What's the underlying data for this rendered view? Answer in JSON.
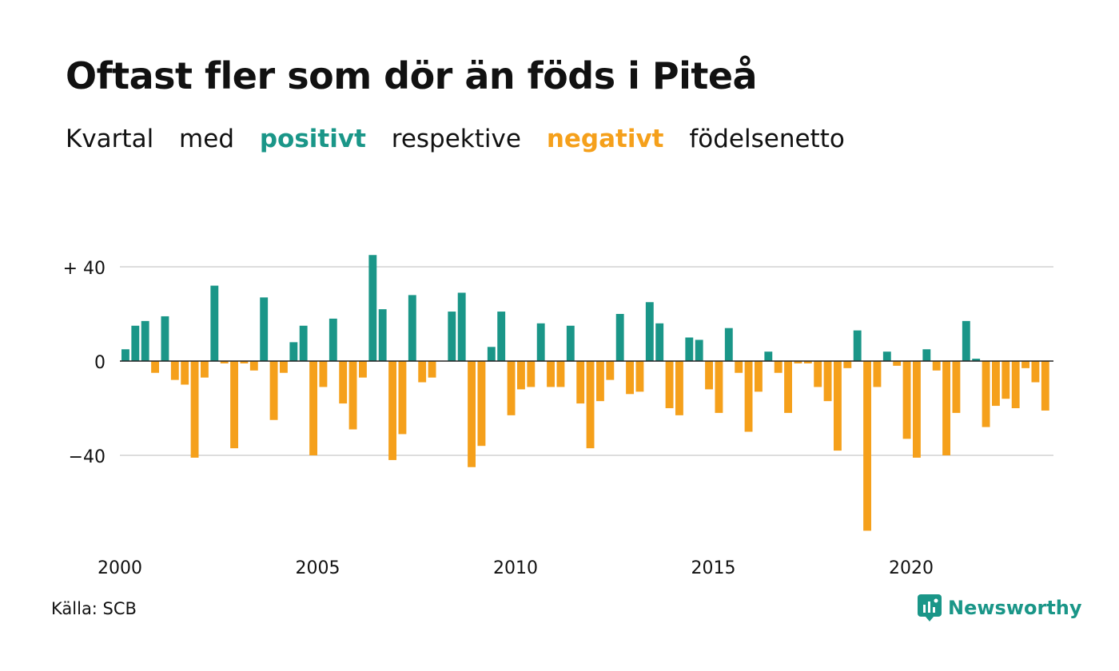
{
  "title": "Oftast fler som dör än föds i Piteå",
  "subtitle": {
    "w1": "Kvartal",
    "w2": "med",
    "positive": "positivt",
    "w3": "respektive",
    "negative": "negativt",
    "w4": "födelsenetto"
  },
  "colors": {
    "positive": "#1a9688",
    "negative": "#f5a01b",
    "grid": "#dddddd",
    "axis": "#222222"
  },
  "source": "Källa: SCB",
  "brand": {
    "name": "Newsworthy",
    "icon": "newsworthy-chart-icon"
  },
  "chart_data": {
    "type": "bar",
    "x_start_year": 2000,
    "x_end_year": 2023,
    "quarters_per_year": 4,
    "x_ticks": [
      "2000",
      "2005",
      "2010",
      "2015",
      "2020"
    ],
    "y_ticks": [
      {
        "value": 40,
        "label": "+ 40"
      },
      {
        "value": 0,
        "label": "0"
      },
      {
        "value": -40,
        "label": "−40"
      }
    ],
    "ylim": [
      -75,
      45
    ],
    "grid": true,
    "legend": "none",
    "values": [
      5,
      15,
      17,
      -5,
      19,
      -8,
      -10,
      -41,
      -7,
      32,
      -1,
      -37,
      -1,
      -4,
      27,
      -25,
      -5,
      8,
      15,
      -40,
      -11,
      18,
      -18,
      -29,
      -7,
      45,
      22,
      -42,
      -31,
      28,
      -9,
      -7,
      0,
      21,
      29,
      -45,
      -36,
      6,
      21,
      -23,
      -12,
      -11,
      16,
      -11,
      -11,
      15,
      -18,
      -37,
      -17,
      -8,
      20,
      -14,
      -13,
      25,
      16,
      -20,
      -23,
      10,
      9,
      -12,
      -22,
      14,
      -5,
      -30,
      -13,
      4,
      -5,
      -22,
      -1,
      -1,
      -11,
      -17,
      -38,
      -3,
      13,
      -72,
      -11,
      4,
      -2,
      -33,
      -41,
      5,
      -4,
      -40,
      -22,
      17,
      1,
      -28,
      -19,
      -16,
      -20,
      -3,
      -9,
      -21
    ]
  }
}
